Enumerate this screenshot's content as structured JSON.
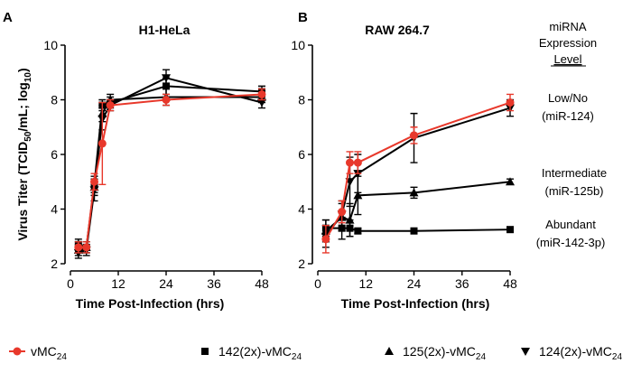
{
  "figure": {
    "y_label_main": "Virus Titer (TCID",
    "y_label_sub": "50",
    "y_label_mid": "/mL; log",
    "y_label_sub2": "10",
    "y_label_end": ")",
    "x_label": "Time Post-Infection (hrs)",
    "mirna_header_1": "miRNA",
    "mirna_header_2": "Expression",
    "mirna_header_3": "Level",
    "level_low_1": "Low/No",
    "level_low_2": "(miR-124)",
    "level_int_1": "Intermediate",
    "level_int_2": "(miR-125b)",
    "level_abund_1": "Abundant",
    "level_abund_2": "(miR-142-3p)"
  },
  "legend": [
    {
      "base": "vMC",
      "sub": "24",
      "color": "#e8382b",
      "marker": "circle"
    },
    {
      "base": "142(2x)-vMC",
      "sub": "24",
      "color": "#000000",
      "marker": "square"
    },
    {
      "base": "125(2x)-vMC",
      "sub": "24",
      "color": "#000000",
      "marker": "triangle-up"
    },
    {
      "base": "124(2x)-vMC",
      "sub": "24",
      "color": "#000000",
      "marker": "triangle-down"
    }
  ],
  "chart_data": [
    {
      "panel": "A",
      "type": "line",
      "title": "H1-HeLa",
      "xlabel": "Time Post-Infection (hrs)",
      "ylabel": "Virus Titer (TCID50/mL; log10)",
      "xlim": [
        0,
        48
      ],
      "ylim": [
        2,
        10
      ],
      "xticks": [
        0,
        12,
        24,
        36,
        48
      ],
      "yticks": [
        2,
        4,
        6,
        8,
        10
      ],
      "x": [
        2,
        4,
        6,
        8,
        10,
        24,
        48
      ],
      "series": [
        {
          "name": "142(2x)-vMC24",
          "color": "#000000",
          "marker": "square",
          "values": [
            2.7,
            2.6,
            4.9,
            7.8,
            7.9,
            8.5,
            8.3
          ],
          "errors": [
            0.2,
            0.2,
            0.3,
            0.2,
            0.2,
            0.3,
            0.2
          ]
        },
        {
          "name": "125(2x)-vMC24",
          "color": "#000000",
          "marker": "triangle-up",
          "values": [
            2.5,
            2.6,
            4.8,
            7.5,
            8.0,
            8.1,
            8.1
          ],
          "errors": [
            0.2,
            0.2,
            0.3,
            0.3,
            0.2,
            0.3,
            0.2
          ]
        },
        {
          "name": "124(2x)-vMC24",
          "color": "#000000",
          "marker": "triangle-down",
          "values": [
            2.4,
            2.5,
            4.7,
            7.3,
            7.8,
            8.8,
            7.9
          ],
          "errors": [
            0.2,
            0.2,
            0.4,
            0.4,
            0.2,
            0.3,
            0.2
          ]
        },
        {
          "name": "vMC24",
          "color": "#e8382b",
          "marker": "circle",
          "values": [
            2.6,
            2.6,
            5.0,
            6.4,
            7.8,
            8.0,
            8.2
          ],
          "errors": [
            0.2,
            0.2,
            0.3,
            1.5,
            0.2,
            0.2,
            0.2
          ]
        }
      ]
    },
    {
      "panel": "B",
      "type": "line",
      "title": "RAW 264.7",
      "xlabel": "Time Post-Infection (hrs)",
      "ylabel": "",
      "xlim": [
        0,
        48
      ],
      "ylim": [
        2,
        10
      ],
      "xticks": [
        0,
        12,
        24,
        36,
        48
      ],
      "yticks": [
        2,
        4,
        6,
        8,
        10
      ],
      "x": [
        2,
        6,
        8,
        10,
        24,
        48
      ],
      "series": [
        {
          "name": "142(2x)-vMC24",
          "color": "#000000",
          "marker": "square",
          "values": [
            3.3,
            3.3,
            3.3,
            3.2,
            3.2,
            3.25
          ],
          "errors": [
            0.3,
            0.4,
            0.3,
            0.1,
            0.1,
            0.1
          ]
        },
        {
          "name": "125(2x)-vMC24",
          "color": "#000000",
          "marker": "triangle-up",
          "values": [
            3.2,
            3.7,
            3.6,
            4.5,
            4.6,
            5.0
          ],
          "errors": [
            0.4,
            0.5,
            0.6,
            0.7,
            0.2,
            0.1
          ]
        },
        {
          "name": "124(2x)-vMC24",
          "color": "#000000",
          "marker": "triangle-down",
          "values": [
            3.0,
            3.8,
            5.0,
            5.3,
            6.6,
            7.7
          ],
          "errors": [
            0.4,
            0.5,
            0.9,
            0.7,
            0.9,
            0.3
          ]
        },
        {
          "name": "vMC24",
          "color": "#e8382b",
          "marker": "circle",
          "values": [
            2.9,
            3.9,
            5.7,
            5.7,
            6.7,
            7.9
          ],
          "errors": [
            0.5,
            0.4,
            0.4,
            0.4,
            0.3,
            0.3
          ]
        }
      ]
    }
  ]
}
